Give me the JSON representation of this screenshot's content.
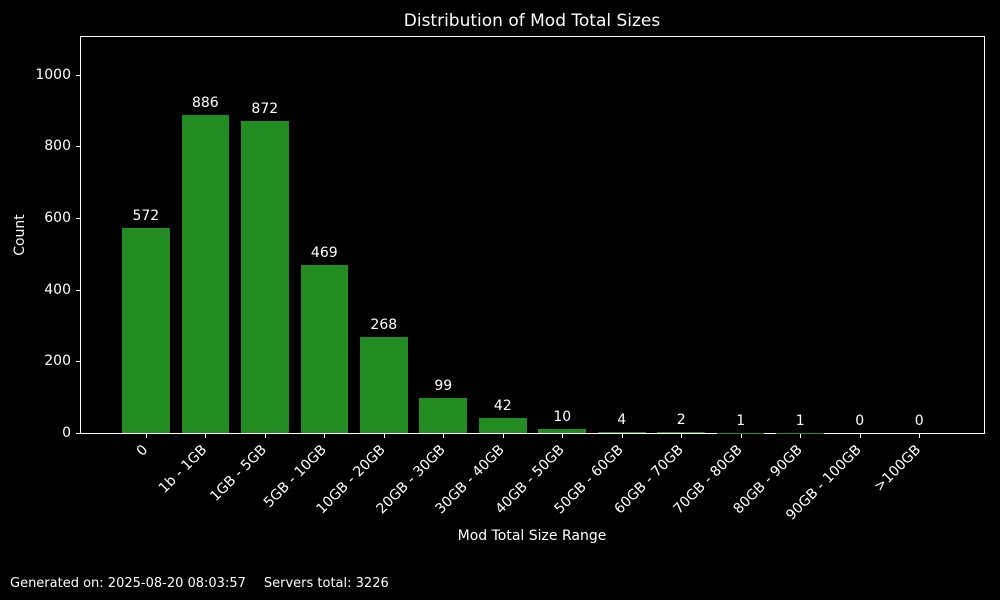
{
  "title": "Distribution of Mod Total Sizes",
  "footer": {
    "generated": "Generated on: 2025-08-20 08:03:57",
    "servers_total": "Servers total: 3226"
  },
  "colors": {
    "background": "#000000",
    "bar": "#228B22",
    "text": "#ffffff",
    "axis": "#ffffff"
  },
  "chart_data": {
    "type": "bar",
    "title": "Distribution of Mod Total Sizes",
    "xlabel": "Mod Total Size Range",
    "ylabel": "Count",
    "categories": [
      "0",
      "1b - 1GB",
      "1GB - 5GB",
      "5GB - 10GB",
      "10GB - 20GB",
      "20GB - 30GB",
      "30GB - 40GB",
      "40GB - 50GB",
      "50GB - 60GB",
      "60GB - 70GB",
      "70GB - 80GB",
      "80GB - 90GB",
      "90GB - 100GB",
      ">100GB"
    ],
    "values": [
      572,
      886,
      872,
      469,
      268,
      99,
      42,
      10,
      4,
      2,
      1,
      1,
      0,
      0
    ],
    "yticks": [
      0,
      200,
      400,
      600,
      800,
      1000
    ],
    "ylim": [
      0,
      1105
    ],
    "bar_value_labels": true,
    "grid": false,
    "legend": null
  }
}
